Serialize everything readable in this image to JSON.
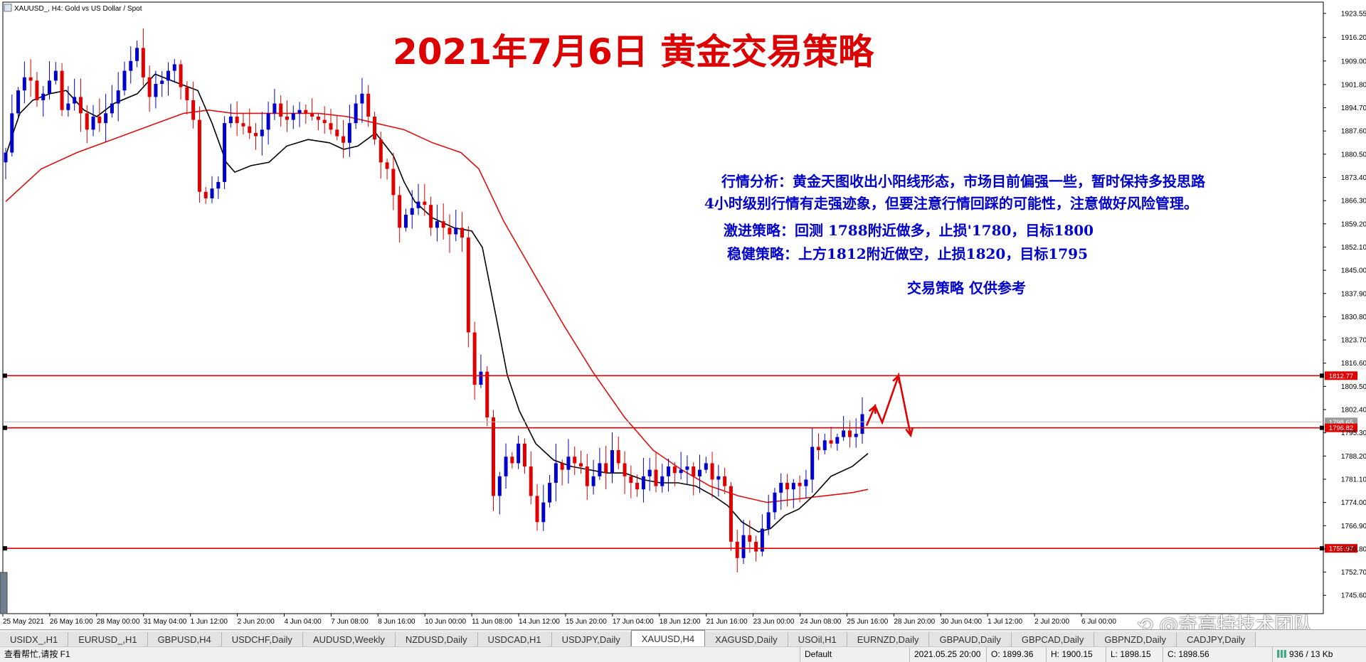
{
  "header": {
    "symbol_line": "XAUUSD_, H4:  Gold vs US Dollar / Spot"
  },
  "title": "2021年7月6日  黄金交易策略",
  "analysis": {
    "line1": "行情分析：黄金天图收出小阳线形态，市场目前偏强一些，暂时保持多投思路",
    "line2": "4小时级别行情有走强迹象，但要注意行情回踩的可能性，注意做好风险管理。",
    "line3": "激进策略：回测 1788附近做多，止损'1780，目标1800",
    "line4": "稳健策略：上方1812附近做空，止损1820，目标1795",
    "line5": "交易策略   仅供参考"
  },
  "colors": {
    "bull": "#0000cc",
    "bear": "#e00000",
    "ma_fast": "#000000",
    "ma_slow": "#dd1111",
    "level_line": "#e00000",
    "title": "#dd0000",
    "analysis_text": "#0000cc"
  },
  "chart_data": {
    "type": "candlestick",
    "symbol": "XAUUSD_",
    "timeframe": "H4",
    "y_ticks": [
      "1923.55",
      "1916.20",
      "1909.00",
      "1901.80",
      "1894.70",
      "1887.60",
      "1880.50",
      "1873.40",
      "1866.30",
      "1859.20",
      "1852.10",
      "1845.00",
      "1837.90",
      "1830.80",
      "1823.70",
      "1816.60",
      "1809.50",
      "1802.40",
      "1795.30",
      "1788.20",
      "1781.10",
      "1774.00",
      "1766.90",
      "1759.80",
      "1752.70",
      "1745.60"
    ],
    "y_range": [
      1740.0,
      1927.0
    ],
    "x_labels": [
      "25 May 2021",
      "26 May 16:00",
      "28 May 00:00",
      "31 May 04:00",
      "1 Jun 12:00",
      "2 Jun 20:00",
      "4 Jun 04:00",
      "7 Jun 08:00",
      "8 Jun 16:00",
      "10 Jun 00:00",
      "11 Jun 08:00",
      "14 Jun 12:00",
      "15 Jun 20:00",
      "17 Jun 04:00",
      "18 Jun 12:00",
      "21 Jun 16:00",
      "23 Jun 00:00",
      "24 Jun 08:00",
      "25 Jun 16:00",
      "28 Jun 20:00",
      "30 Jun 04:00",
      "1 Jul 12:00",
      "2 Jul 20:00",
      "6 Jul 00:00"
    ],
    "price_tags": [
      {
        "label": "1812.77",
        "value": 1812.77
      },
      {
        "label": "1798.65",
        "value": 1798.65
      },
      {
        "label": "1796.82",
        "value": 1796.82
      },
      {
        "label": "1759.97",
        "value": 1759.97
      }
    ],
    "horizontal_levels": [
      1812.77,
      1796.82,
      1759.97
    ],
    "close_path": [
      1881,
      1893,
      1900,
      1904,
      1903,
      1897,
      1899,
      1903,
      1906,
      1894,
      1896,
      1898,
      1893,
      1888,
      1892,
      1890,
      1893,
      1896,
      1900,
      1906,
      1909,
      1913,
      1904,
      1898,
      1902,
      1903,
      1906,
      1908,
      1901,
      1897,
      1891,
      1869,
      1867,
      1870,
      1872,
      1890,
      1892,
      1890,
      1889,
      1887,
      1886,
      1888,
      1893,
      1896,
      1892,
      1891,
      1893,
      1894,
      1893,
      1892,
      1891,
      1890,
      1888,
      1886,
      1884,
      1890,
      1896,
      1899,
      1892,
      1885,
      1878,
      1876,
      1868,
      1858,
      1862,
      1864,
      1866,
      1865,
      1858,
      1860,
      1858,
      1856,
      1858,
      1855,
      1826,
      1810,
      1814,
      1800,
      1776,
      1782,
      1788,
      1786,
      1792,
      1785,
      1776,
      1768,
      1774,
      1780,
      1786,
      1784,
      1788,
      1786,
      1785,
      1779,
      1782,
      1786,
      1783,
      1790,
      1786,
      1782,
      1780,
      1778,
      1782,
      1784,
      1779,
      1782,
      1785,
      1783,
      1784,
      1785,
      1782,
      1784,
      1786,
      1781,
      1782,
      1779,
      1762,
      1757,
      1764,
      1762,
      1759,
      1766,
      1771,
      1777,
      1780,
      1778,
      1780,
      1779,
      1781,
      1791,
      1790,
      1793,
      1792,
      1794,
      1796,
      1794,
      1795,
      1801
    ],
    "ma_fast_points": [
      [
        0,
        1880
      ],
      [
        12,
        1888
      ],
      [
        20,
        1893
      ],
      [
        38,
        1897
      ],
      [
        62,
        1899
      ],
      [
        85,
        1900
      ],
      [
        110,
        1894
      ],
      [
        128,
        1892
      ],
      [
        152,
        1896
      ],
      [
        185,
        1899
      ],
      [
        210,
        1905
      ],
      [
        245,
        1902
      ],
      [
        270,
        1900
      ],
      [
        290,
        1890
      ],
      [
        310,
        1878
      ],
      [
        322,
        1875
      ],
      [
        345,
        1877
      ],
      [
        370,
        1878
      ],
      [
        395,
        1883
      ],
      [
        425,
        1885
      ],
      [
        455,
        1884
      ],
      [
        475,
        1882
      ],
      [
        495,
        1883
      ],
      [
        520,
        1887
      ],
      [
        545,
        1880
      ],
      [
        560,
        1872
      ],
      [
        575,
        1866
      ],
      [
        600,
        1861
      ],
      [
        630,
        1858
      ],
      [
        655,
        1857
      ],
      [
        670,
        1852
      ],
      [
        690,
        1830
      ],
      [
        705,
        1813
      ],
      [
        722,
        1802
      ],
      [
        745,
        1792
      ],
      [
        770,
        1787
      ],
      [
        795,
        1785
      ],
      [
        820,
        1784
      ],
      [
        845,
        1783
      ],
      [
        870,
        1783
      ],
      [
        895,
        1781
      ],
      [
        920,
        1780
      ],
      [
        945,
        1780
      ],
      [
        970,
        1779
      ],
      [
        995,
        1776
      ],
      [
        1015,
        1773
      ],
      [
        1035,
        1768
      ],
      [
        1058,
        1765
      ],
      [
        1075,
        1766
      ],
      [
        1095,
        1770
      ],
      [
        1115,
        1772
      ],
      [
        1135,
        1776
      ],
      [
        1160,
        1782
      ],
      [
        1190,
        1785
      ],
      [
        1212,
        1789
      ]
    ],
    "ma_slow_points": [
      [
        0,
        1866
      ],
      [
        50,
        1876
      ],
      [
        100,
        1881
      ],
      [
        150,
        1885
      ],
      [
        200,
        1889
      ],
      [
        250,
        1893
      ],
      [
        285,
        1894
      ],
      [
        320,
        1893
      ],
      [
        360,
        1893
      ],
      [
        400,
        1893
      ],
      [
        440,
        1893
      ],
      [
        480,
        1892
      ],
      [
        520,
        1890
      ],
      [
        560,
        1888
      ],
      [
        600,
        1884
      ],
      [
        640,
        1881
      ],
      [
        665,
        1876
      ],
      [
        700,
        1860
      ],
      [
        745,
        1843
      ],
      [
        785,
        1828
      ],
      [
        825,
        1814
      ],
      [
        870,
        1800
      ],
      [
        910,
        1790
      ],
      [
        950,
        1784
      ],
      [
        990,
        1779
      ],
      [
        1030,
        1776
      ],
      [
        1070,
        1774
      ],
      [
        1110,
        1775
      ],
      [
        1150,
        1776
      ],
      [
        1190,
        1777
      ],
      [
        1212,
        1778
      ]
    ],
    "forecast_path": [
      [
        1210,
        1797.5
      ],
      [
        1222,
        1803.5
      ],
      [
        1232,
        1798.5
      ],
      [
        1255,
        1812.8
      ],
      [
        1272,
        1794.5
      ]
    ]
  },
  "tabs": [
    "USIDX_,H1",
    "EURUSD_,H1",
    "GBPUSD,H4",
    "USDCHF,Daily",
    "AUDUSD,Weekly",
    "NZDUSD,Daily",
    "USDCAD,H1",
    "USDJPY,Daily",
    "XAUUSD,H4",
    "XAGUSD,Daily",
    "USOil,H1",
    "EURNZD,Daily",
    "GBPAUD,Daily",
    "GBPCAD,Daily",
    "GBPNZD,Daily",
    "CADJPY,Daily"
  ],
  "active_tab": "XAUUSD,H4",
  "status": {
    "help": "查看帮忙,请按 F1",
    "profile": "Default",
    "datetime": "2021.05.25 20:00",
    "open": "O: 1899.36",
    "high": "H: 1900.15",
    "low": "L: 1898.15",
    "close": "C: 1898.56",
    "traffic": "936 / 13 Kb"
  },
  "watermark": "⟲ @奇高特技术团队"
}
